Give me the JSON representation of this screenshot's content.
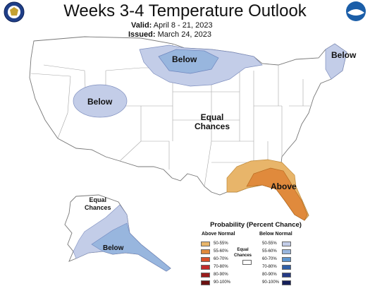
{
  "header": {
    "title": "Weeks 3-4 Temperature Outlook",
    "valid_label": "Valid:",
    "valid_value": "April 8 - 21, 2023",
    "issued_label": "Issued:",
    "issued_value": "March 24, 2023"
  },
  "logos": {
    "left": "Department of Commerce seal",
    "right_text": "NOAA"
  },
  "map_labels": {
    "below_north": "Below",
    "below_west": "Below",
    "below_northeast": "Below",
    "equal_chances_conus": [
      "Equal",
      "Chances"
    ],
    "above_southeast": "Above",
    "equal_chances_alaska": [
      "Equal",
      "Chances"
    ],
    "below_alaska": "Below"
  },
  "legend": {
    "title": "Probability (Percent Chance)",
    "above_header": "Above Normal",
    "below_header": "Below Normal",
    "equal_label": [
      "Equal",
      "Chances"
    ],
    "ranges": [
      "50-55%",
      "55-60%",
      "60-70%",
      "70-80%",
      "80-90%",
      "90-100%"
    ],
    "above_colors": [
      "#e8b56a",
      "#e08a3c",
      "#d9502a",
      "#c22a2a",
      "#9a1c1c",
      "#6b1010"
    ],
    "below_colors": [
      "#c3cde8",
      "#98b6de",
      "#5d95cf",
      "#2f5fa8",
      "#243a86",
      "#151f5a"
    ],
    "equal_color": "#ffffff"
  },
  "colors": {
    "state_line": "#9a9a9a",
    "below_50": "#c3cde8",
    "below_55": "#98b6de",
    "above_50": "#e8b56a",
    "above_55": "#e08a3c"
  }
}
